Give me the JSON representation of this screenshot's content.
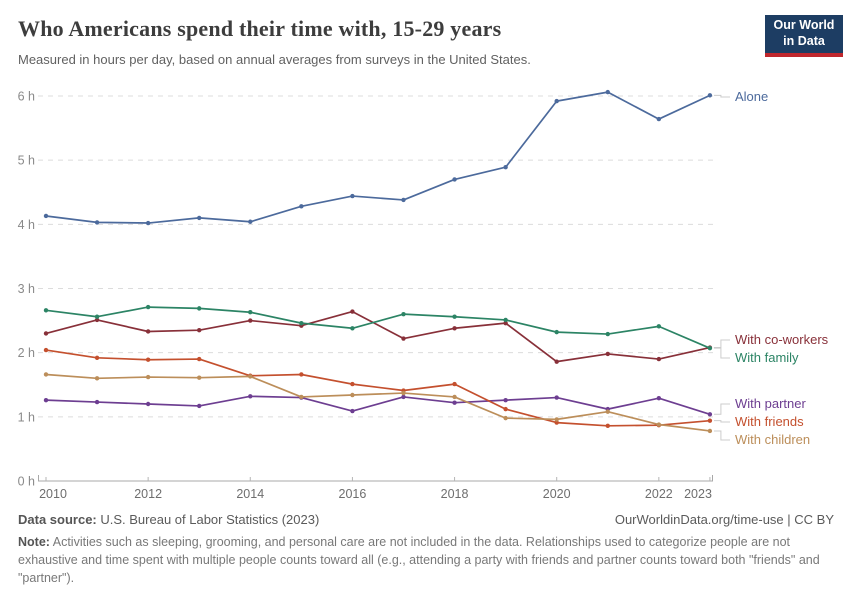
{
  "header": {
    "title": "Who Americans spend their time with, 15-29 years",
    "subtitle": "Measured in hours per day, based on annual averages from surveys in the United States.",
    "logo": {
      "line1": "Our World",
      "line2": "in Data",
      "bg_color": "#1d3d63",
      "accent_color": "#c0272d"
    }
  },
  "chart_data": {
    "type": "line",
    "title": "Who Americans spend their time with, 15-29 years",
    "unit": "hours per day",
    "x": [
      2010,
      2011,
      2012,
      2013,
      2014,
      2015,
      2016,
      2017,
      2018,
      2019,
      2020,
      2021,
      2022,
      2023
    ],
    "series": [
      {
        "name": "Alone",
        "color": "#4C6A9C",
        "values": [
          4.13,
          4.03,
          4.02,
          4.1,
          4.04,
          4.28,
          4.44,
          4.38,
          4.7,
          4.89,
          5.92,
          6.06,
          5.64,
          6.01
        ]
      },
      {
        "name": "With co-workers",
        "color": "#883039",
        "values": [
          2.3,
          2.51,
          2.33,
          2.35,
          2.5,
          2.42,
          2.64,
          2.22,
          2.38,
          2.46,
          1.86,
          1.98,
          1.9,
          2.08
        ]
      },
      {
        "name": "With family",
        "color": "#2C8465",
        "values": [
          2.66,
          2.56,
          2.71,
          2.69,
          2.63,
          2.46,
          2.38,
          2.6,
          2.56,
          2.51,
          2.32,
          2.29,
          2.41,
          2.07
        ]
      },
      {
        "name": "With partner",
        "color": "#6D3E91",
        "values": [
          1.26,
          1.23,
          1.2,
          1.17,
          1.32,
          1.3,
          1.09,
          1.31,
          1.22,
          1.26,
          1.3,
          1.12,
          1.29,
          1.04
        ]
      },
      {
        "name": "With friends",
        "color": "#C4502E",
        "values": [
          2.04,
          1.92,
          1.89,
          1.9,
          1.64,
          1.66,
          1.51,
          1.41,
          1.51,
          1.12,
          0.91,
          0.86,
          0.87,
          0.94
        ]
      },
      {
        "name": "With children",
        "color": "#BC8E5A",
        "values": [
          1.66,
          1.6,
          1.62,
          1.61,
          1.63,
          1.31,
          1.34,
          1.37,
          1.31,
          0.98,
          0.96,
          1.08,
          0.88,
          0.78
        ]
      }
    ],
    "ylim": [
      0,
      6
    ],
    "yticks": [
      {
        "value": 0,
        "label": "0 h"
      },
      {
        "value": 1,
        "label": "1 h"
      },
      {
        "value": 2,
        "label": "2 h"
      },
      {
        "value": 3,
        "label": "3 h"
      },
      {
        "value": 4,
        "label": "4 h"
      },
      {
        "value": 5,
        "label": "5 h"
      },
      {
        "value": 6,
        "label": "6 h"
      }
    ],
    "xticks": [
      {
        "value": 2010,
        "label": "2010"
      },
      {
        "value": 2012,
        "label": "2012"
      },
      {
        "value": 2014,
        "label": "2014"
      },
      {
        "value": 2016,
        "label": "2016"
      },
      {
        "value": 2018,
        "label": "2018"
      },
      {
        "value": 2020,
        "label": "2020"
      },
      {
        "value": 2022,
        "label": "2022"
      },
      {
        "value": 2023,
        "label": "2023"
      }
    ],
    "grid": "horizontal-dashed",
    "legend_position": "right-edge-labels"
  },
  "footer": {
    "source_label": "Data source:",
    "source_text": " U.S. Bureau of Labor Statistics (2023)",
    "link_text": "OurWorldinData.org/time-use | CC BY",
    "note_label": "Note:",
    "note_text": " Activities such as sleeping, grooming, and personal care are not included in the data. Relationships used to categorize people are not exhaustive and time spent with multiple people counts toward all (e.g., attending a party with friends and partner counts toward both \"friends\" and \"partner\")."
  }
}
